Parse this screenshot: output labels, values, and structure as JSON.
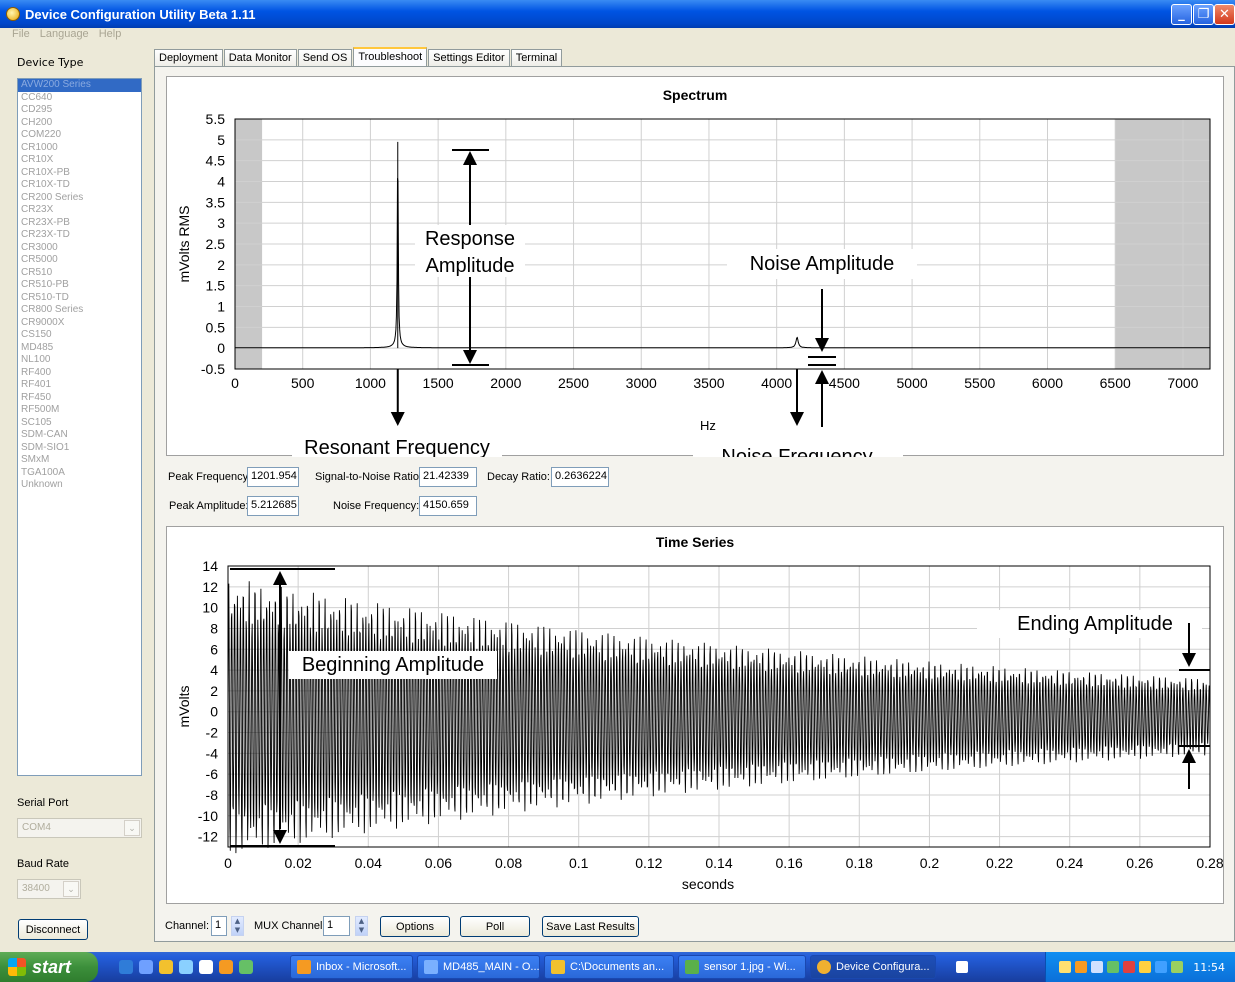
{
  "window": {
    "title": "Device Configuration Utility Beta 1.11"
  },
  "menu": [
    "File",
    "Language",
    "Help"
  ],
  "sidebar": {
    "device_type_label": "Device Type",
    "devices": [
      "AVW200 Series",
      "CC640",
      "CD295",
      "CH200",
      "COM220",
      "CR1000",
      "CR10X",
      "CR10X-PB",
      "CR10X-TD",
      "CR200 Series",
      "CR23X",
      "CR23X-PB",
      "CR23X-TD",
      "CR3000",
      "CR5000",
      "CR510",
      "CR510-PB",
      "CR510-TD",
      "CR800 Series",
      "CR9000X",
      "CS150",
      "MD485",
      "NL100",
      "RF400",
      "RF401",
      "RF450",
      "RF500M",
      "SC105",
      "SDM-CAN",
      "SDM-SIO1",
      "SMxM",
      "TGA100A",
      "Unknown"
    ],
    "selected": "AVW200 Series",
    "serial_port_label": "Serial Port",
    "serial_port_value": "COM4",
    "baud_rate_label": "Baud Rate",
    "baud_rate_value": "38400",
    "disconnect_label": "Disconnect"
  },
  "tabs": [
    "Deployment",
    "Data Monitor",
    "Send OS",
    "Troubleshoot",
    "Settings Editor",
    "Terminal"
  ],
  "active_tab": "Troubleshoot",
  "readouts": {
    "peak_frequency_label": "Peak Frequency:",
    "peak_frequency": "1201.954",
    "snr_label": "Signal-to-Noise Ratio:",
    "snr": "21.42339",
    "decay_label": "Decay Ratio:",
    "decay": "0.2636224",
    "peak_amplitude_label": "Peak Amplitude:",
    "peak_amplitude": "5.212685",
    "noise_frequency_label": "Noise Frequency:",
    "noise_frequency": "4150.659"
  },
  "bottom": {
    "channel_label": "Channel:",
    "channel_value": "1",
    "mux_label": "MUX Channel:",
    "mux_value": "1",
    "options_label": "Options",
    "poll_label": "Poll",
    "save_label": "Save Last Results"
  },
  "annotations": {
    "response_amplitude": [
      "Response",
      "Amplitude"
    ],
    "noise_amplitude": "Noise Amplitude",
    "resonant_frequency": "Resonant Frequency",
    "noise_frequency": "Noise Frequency",
    "beginning_amplitude": "Beginning Amplitude",
    "ending_amplitude": "Ending Amplitude"
  },
  "chart_data": [
    {
      "type": "line",
      "title": "Spectrum",
      "xlabel": "Hz",
      "ylabel": "mVolts RMS",
      "xlim": [
        0,
        7200
      ],
      "ylim": [
        -0.5,
        5.5
      ],
      "x_ticks": [
        "0",
        "500",
        "1000",
        "1500",
        "2000",
        "2500",
        "3000",
        "3500",
        "4000",
        "4500",
        "5000",
        "5500",
        "6000",
        "6500",
        "7000"
      ],
      "y_ticks": [
        "5.5",
        "5",
        "4.5",
        "4",
        "3.5",
        "3",
        "2.5",
        "2",
        "1.5",
        "1",
        "0.5",
        "0",
        "-0.5"
      ],
      "shaded_regions_hz": [
        [
          0,
          200
        ],
        [
          6500,
          7200
        ]
      ],
      "peaks": [
        {
          "x": 1201.954,
          "y": 4.95
        },
        {
          "x": 4150.659,
          "y": 0.25
        }
      ],
      "grid": true
    },
    {
      "type": "line",
      "title": "Time Series",
      "xlabel": "seconds",
      "ylabel": "mVolts",
      "xlim": [
        0,
        0.28
      ],
      "ylim": [
        -13,
        14
      ],
      "x_ticks": [
        "0",
        "0.02",
        "0.04",
        "0.06",
        "0.08",
        "0.1",
        "0.12",
        "0.14",
        "0.16",
        "0.18",
        "0.2",
        "0.22",
        "0.24",
        "0.26",
        "0.28"
      ],
      "y_ticks": [
        "14",
        "12",
        "10",
        "8",
        "6",
        "4",
        "2",
        "0",
        "-2",
        "-4",
        "-6",
        "-8",
        "-10",
        "-12"
      ],
      "envelope": {
        "start_amplitude": 13.5,
        "end_amplitude": 3.7,
        "center": -0.5
      },
      "grid": true
    }
  ],
  "taskbar": {
    "start_label": "start",
    "items": [
      "Inbox - Microsoft...",
      "MD485_MAIN - O...",
      "C:\\Documents an...",
      "sensor 1.jpg - Wi...",
      "Device Configura..."
    ],
    "clock": "11:54"
  }
}
